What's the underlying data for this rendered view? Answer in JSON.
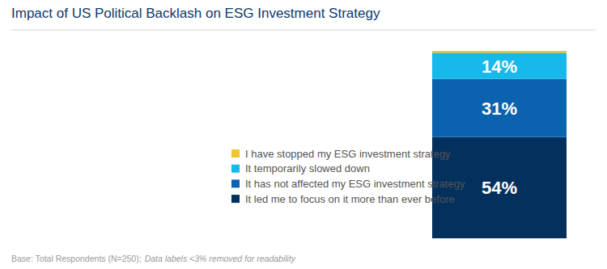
{
  "chart_data": {
    "type": "bar",
    "title": "Impact of US Political Backlash on ESG Investment Strategy",
    "annotations": [
      "Base: Total Respondents (N=250);",
      "Data labels <3% removed for readability"
    ],
    "categories": [
      null
    ],
    "stacked": true,
    "data_labels": true,
    "tick_labels": false,
    "grid": false,
    "legend": "left",
    "ylim": [
      0,
      100
    ],
    "series": [
      {
        "name": "I have stopped my ESG investment strategy",
        "color": "#f2c230",
        "values": [
          1
        ],
        "value_labels": [
          null
        ]
      },
      {
        "name": "It temporarily slowed down",
        "color": "#17b9ea",
        "values": [
          14
        ],
        "value_labels": [
          "14%"
        ]
      },
      {
        "name": "It has not affected my ESG investment strategy",
        "color": "#0b62ae",
        "values": [
          31
        ],
        "value_labels": [
          "31%"
        ]
      },
      {
        "name": "It led me to focus on it more than ever before",
        "color": "#03305d",
        "values": [
          54
        ],
        "value_labels": [
          "54%"
        ]
      }
    ]
  }
}
